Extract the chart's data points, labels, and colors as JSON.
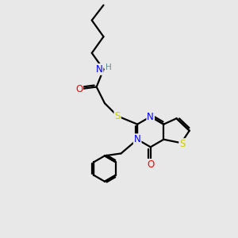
{
  "background_color": "#e8e8e8",
  "atom_colors": {
    "C": "#000000",
    "N": "#0000ff",
    "O": "#ff0000",
    "S": "#cccc00",
    "H": "#5f9090"
  },
  "bond_color": "#000000",
  "bond_width": 1.6,
  "figsize": [
    3.0,
    3.0
  ],
  "dpi": 100
}
